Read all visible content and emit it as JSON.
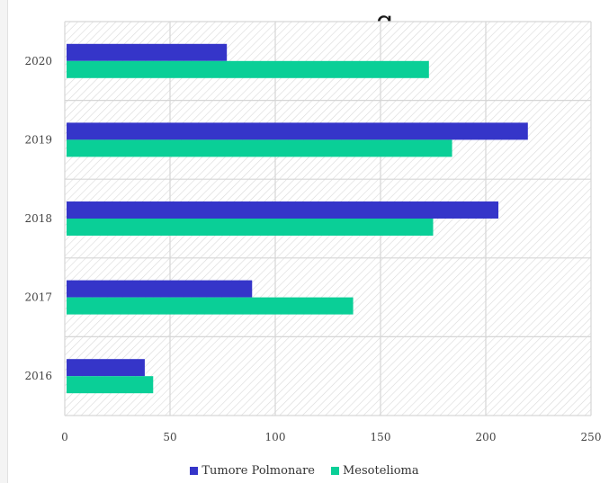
{
  "chart_data": {
    "type": "bar",
    "orientation": "horizontal",
    "title_visible_fragment": "g",
    "categories": [
      "2020",
      "2019",
      "2018",
      "2017",
      "2016"
    ],
    "series": [
      {
        "name": "Tumore Polmonare",
        "color": "#3535c9",
        "values": [
          77,
          220,
          206,
          89,
          38
        ]
      },
      {
        "name": "Mesotelioma",
        "color": "#0acf97",
        "values": [
          173,
          184,
          175,
          137,
          42
        ]
      }
    ],
    "xlim": [
      0,
      250
    ],
    "xticks": [
      "0",
      "50",
      "100",
      "150",
      "200",
      "250"
    ],
    "grid": true,
    "legend_position": "bottom"
  }
}
